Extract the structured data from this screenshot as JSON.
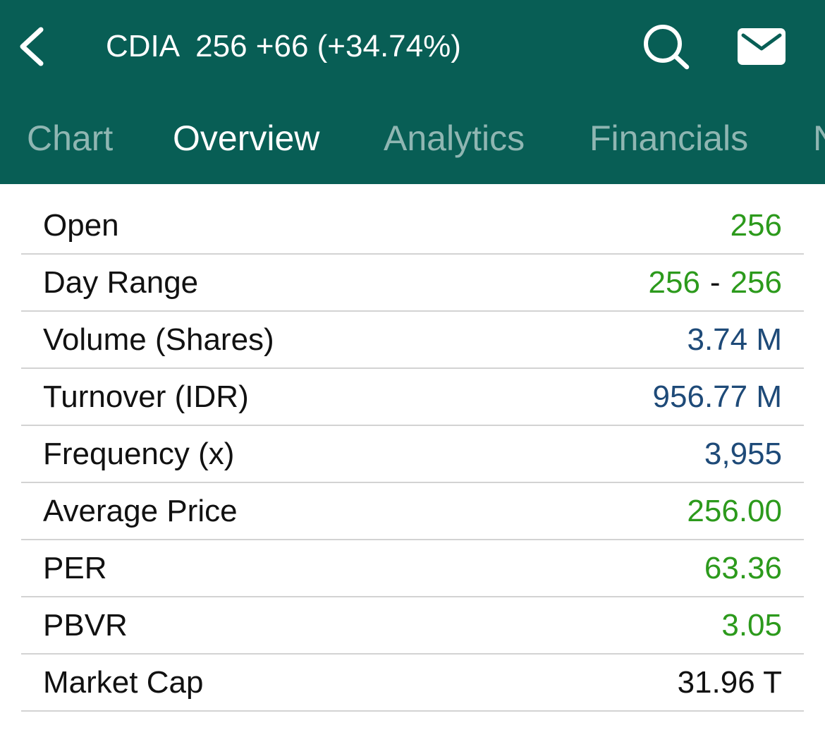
{
  "header": {
    "ticker": "CDIA",
    "quote": "256 +66 (+34.74%)",
    "back_icon": "chevron-left-icon",
    "search_icon": "search-icon",
    "mail_icon": "mail-icon",
    "background_color": "#085e55"
  },
  "tabs": [
    {
      "label": "Chart",
      "active": false
    },
    {
      "label": "Overview",
      "active": true
    },
    {
      "label": "Analytics",
      "active": false
    },
    {
      "label": "Financials",
      "active": false
    },
    {
      "label": "N",
      "active": false
    }
  ],
  "overview": {
    "rows": [
      {
        "label": "Open",
        "value": "256",
        "color": "green"
      },
      {
        "label": "Day Range",
        "low": "256",
        "separator": "-",
        "high": "256",
        "color": "green"
      },
      {
        "label": "Volume (Shares)",
        "value": "3.74 M",
        "color": "blue"
      },
      {
        "label": "Turnover (IDR)",
        "value": "956.77 M",
        "color": "blue"
      },
      {
        "label": "Frequency (x)",
        "value": "3,955",
        "color": "blue"
      },
      {
        "label": "Average Price",
        "value": "256.00",
        "color": "green"
      },
      {
        "label": "PER",
        "value": "63.36",
        "color": "green"
      },
      {
        "label": "PBVR",
        "value": "3.05",
        "color": "green"
      },
      {
        "label": "Market Cap",
        "value": "31.96 T",
        "color": "black"
      }
    ]
  },
  "colors": {
    "green": "#2c9a1c",
    "blue": "#1e4a78",
    "black": "#111111"
  }
}
